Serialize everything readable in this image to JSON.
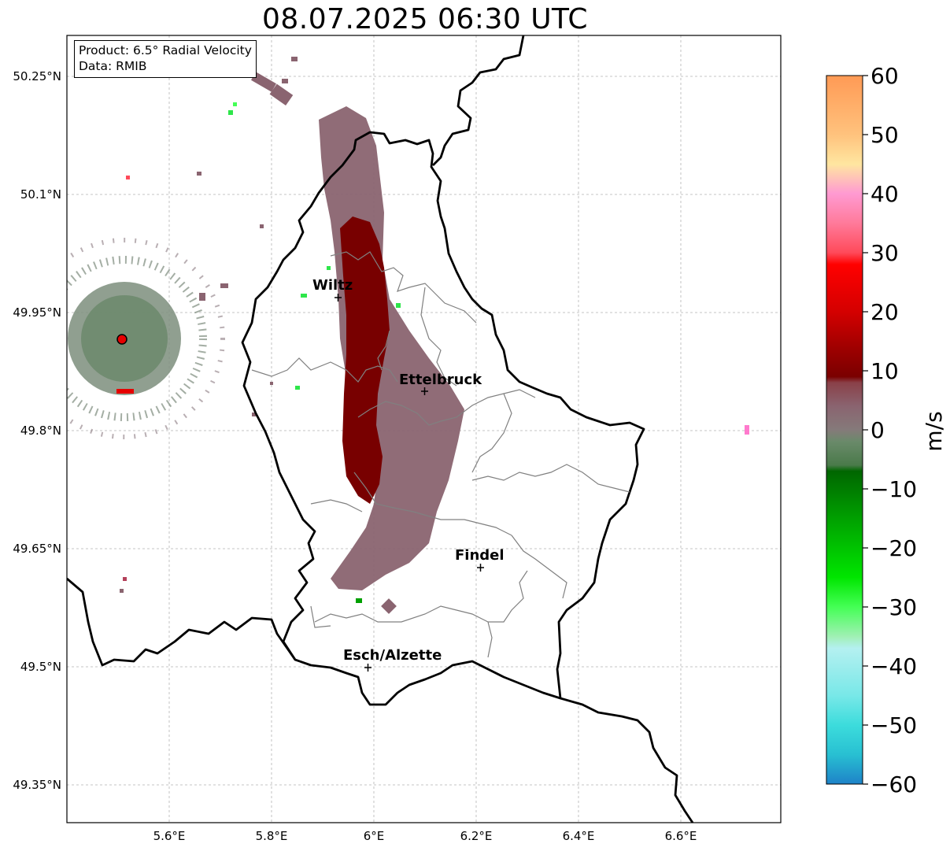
{
  "title": "08.07.2025 06:30 UTC",
  "info": {
    "product": "Product: 6.5° Radial Velocity",
    "source": "Data: RMIB"
  },
  "axes": {
    "lat_labels": [
      "50.25°N",
      "50.1°N",
      "49.95°N",
      "49.8°N",
      "49.65°N",
      "49.5°N",
      "49.35°N"
    ],
    "lon_labels": [
      "5.6°E",
      "5.8°E",
      "6°E",
      "6.2°E",
      "6.4°E",
      "6.6°E"
    ]
  },
  "cities": [
    {
      "name": "Wiltz",
      "lon": 5.93,
      "lat": 49.966
    },
    {
      "name": "Ettelbruck",
      "lon": 6.1,
      "lat": 49.846
    },
    {
      "name": "Findel",
      "lon": 6.21,
      "lat": 49.623
    },
    {
      "name": "Esch/Alzette",
      "lon": 5.99,
      "lat": 49.497
    }
  ],
  "radar_site": {
    "lon": 5.51,
    "lat": 49.915,
    "color": "#e60000"
  },
  "colorbar": {
    "label": "m/s",
    "ticks": [
      "60",
      "50",
      "40",
      "30",
      "20",
      "10",
      "0",
      "−10",
      "−20",
      "−30",
      "−40",
      "−50",
      "−60"
    ],
    "min": -60,
    "max": 60,
    "stops": [
      {
        "v": 60,
        "c": "#ff9a55"
      },
      {
        "v": 50,
        "c": "#ffc27d"
      },
      {
        "v": 45,
        "c": "#ffe6a0"
      },
      {
        "v": 40,
        "c": "#ff9ad2"
      },
      {
        "v": 35,
        "c": "#ff7a9a"
      },
      {
        "v": 30,
        "c": "#ff4a5a"
      },
      {
        "v": 28,
        "c": "#ff0000"
      },
      {
        "v": 20,
        "c": "#d40000"
      },
      {
        "v": 14,
        "c": "#a00000"
      },
      {
        "v": 9,
        "c": "#7a0000"
      },
      {
        "v": 8,
        "c": "#8a4048"
      },
      {
        "v": 4,
        "c": "#8a6470"
      },
      {
        "v": 0,
        "c": "#857a7a"
      },
      {
        "v": -2,
        "c": "#6a8a6a"
      },
      {
        "v": -6,
        "c": "#4a7a4a"
      },
      {
        "v": -7,
        "c": "#006600"
      },
      {
        "v": -15,
        "c": "#00a000"
      },
      {
        "v": -25,
        "c": "#00e600"
      },
      {
        "v": -30,
        "c": "#44ff55"
      },
      {
        "v": -35,
        "c": "#a0f0b4"
      },
      {
        "v": -37,
        "c": "#b4f0f0"
      },
      {
        "v": -45,
        "c": "#78e8e8"
      },
      {
        "v": -50,
        "c": "#3cdcdc"
      },
      {
        "v": -55,
        "c": "#28c0d2"
      },
      {
        "v": -60,
        "c": "#1e82c8"
      }
    ]
  },
  "colors": {
    "positive": "#7a0000",
    "weak": "#8a6470",
    "negative": "#2ee64a",
    "grid": "#b0b0b0"
  }
}
